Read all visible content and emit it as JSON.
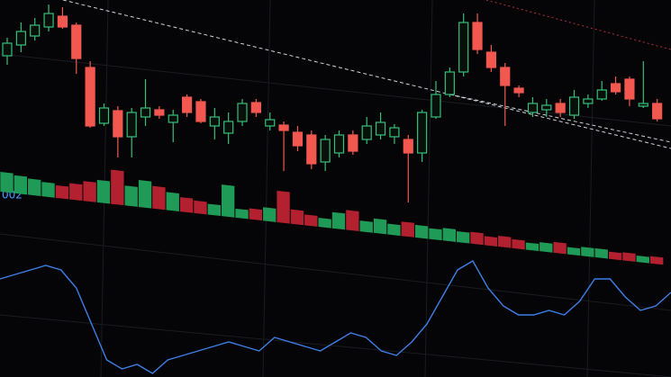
{
  "chart_data": [
    {
      "type": "candlestick",
      "annotation": "002",
      "ylim": [
        0,
        240
      ],
      "up_color": "#37c07a",
      "down_color": "#f2584f",
      "open": [
        178,
        190,
        200,
        210,
        222,
        212,
        165,
        103,
        117,
        88,
        110,
        118,
        104,
        132,
        127,
        100,
        92,
        105,
        126,
        100,
        101,
        93,
        90,
        60,
        70,
        90,
        85,
        90,
        88,
        85,
        70,
        110,
        135,
        160,
        215,
        182,
        165,
        142,
        115,
        118,
        125,
        112,
        125,
        130,
        147,
        152,
        122,
        125
      ],
      "close": [
        192,
        205,
        212,
        225,
        210,
        175,
        100,
        120,
        88,
        115,
        120,
        112,
        112,
        115,
        105,
        110,
        105,
        125,
        115,
        107,
        95,
        78,
        58,
        85,
        90,
        72,
        100,
        104,
        98,
        70,
        115,
        135,
        160,
        215,
        185,
        165,
        145,
        137,
        125,
        123,
        115,
        132,
        130,
        140,
        138,
        130,
        125,
        108
      ],
      "high": [
        198,
        215,
        220,
        235,
        232,
        215,
        172,
        125,
        122,
        120,
        152,
        122,
        118,
        135,
        130,
        120,
        115,
        130,
        130,
        115,
        105,
        100,
        95,
        90,
        95,
        95,
        110,
        115,
        102,
        90,
        118,
        150,
        165,
        225,
        225,
        190,
        170,
        145,
        132,
        130,
        130,
        140,
        135,
        150,
        155,
        155,
        172,
        130
      ],
      "low": [
        168,
        182,
        195,
        205,
        208,
        158,
        98,
        100,
        65,
        65,
        100,
        108,
        82,
        110,
        103,
        85,
        80,
        100,
        110,
        95,
        50,
        72,
        52,
        50,
        65,
        68,
        80,
        85,
        80,
        15,
        60,
        108,
        132,
        155,
        180,
        160,
        100,
        132,
        110,
        110,
        110,
        108,
        120,
        128,
        135,
        122,
        120,
        105
      ],
      "volume": [
        22,
        20,
        18,
        16,
        14,
        18,
        22,
        25,
        38,
        22,
        30,
        25,
        20,
        16,
        14,
        12,
        35,
        10,
        12,
        15,
        35,
        16,
        12,
        10,
        18,
        22,
        12,
        16,
        12,
        16,
        14,
        12,
        14,
        12,
        13,
        10,
        12,
        10,
        8,
        10,
        12,
        8,
        10,
        10,
        8,
        9,
        7,
        8
      ],
      "vlim": [
        0,
        60
      ]
    },
    {
      "type": "line",
      "color": "#3d7fe6",
      "ylim": [
        0,
        140
      ],
      "values": [
        109,
        114,
        119,
        124,
        119,
        99,
        59,
        19,
        9,
        14,
        4,
        19,
        24,
        29,
        34,
        39,
        34,
        29,
        44,
        39,
        34,
        29,
        39,
        49,
        44,
        29,
        24,
        39,
        59,
        89,
        119,
        129,
        99,
        79,
        69,
        69,
        74,
        69,
        84,
        109,
        109,
        89,
        74,
        79,
        94
      ]
    }
  ]
}
